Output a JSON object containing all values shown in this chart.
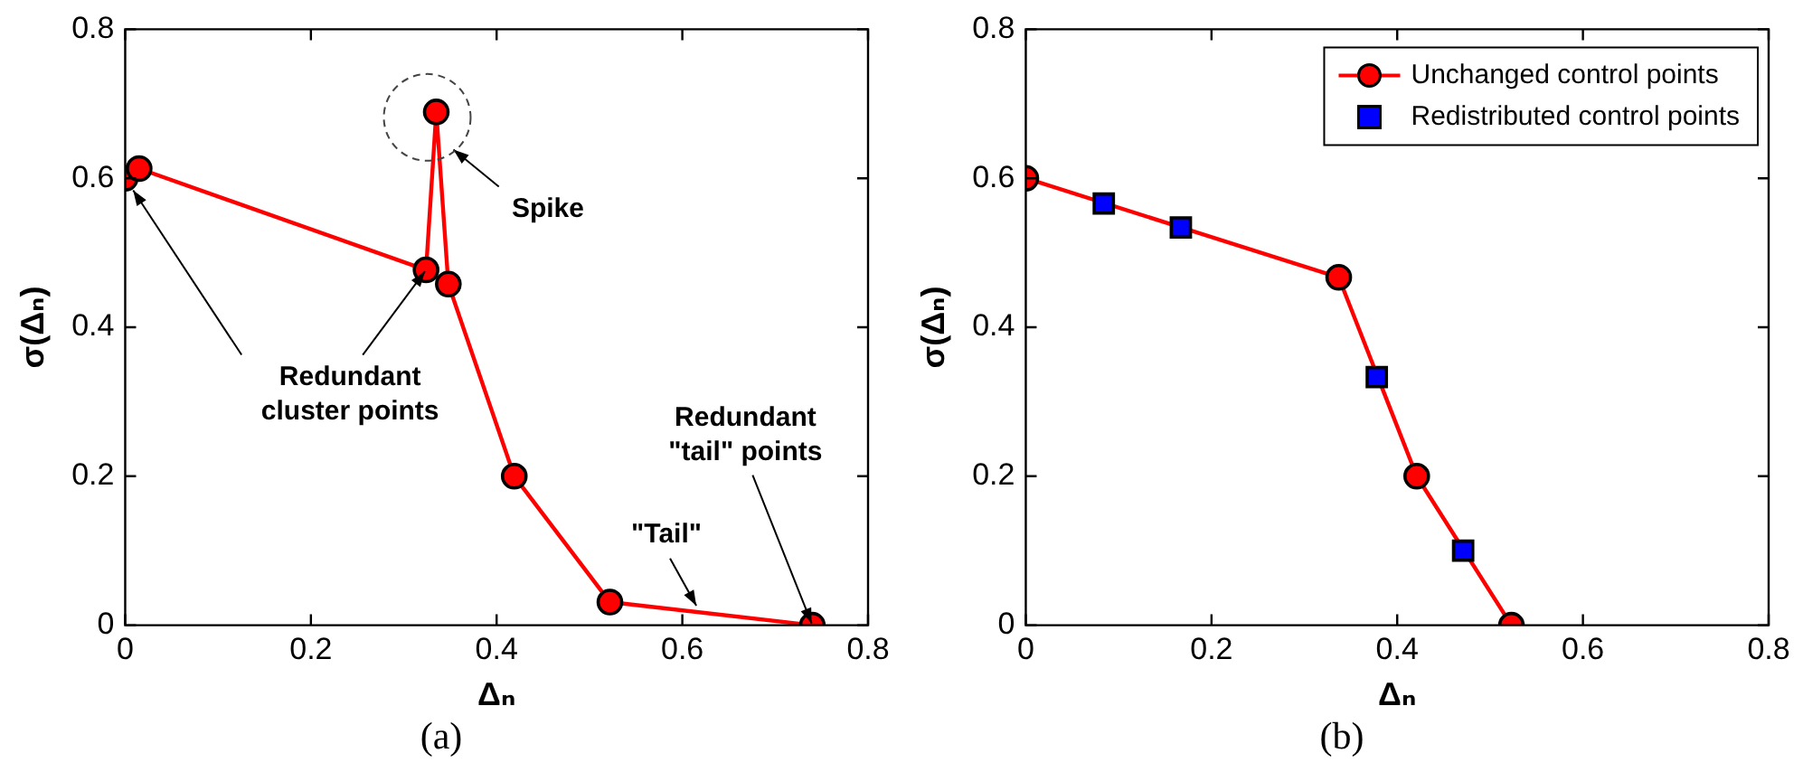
{
  "chart_data": [
    {
      "type": "line",
      "title": "(a)",
      "xlabel": "Δₙ",
      "ylabel": "σ(Δₙ)",
      "series": [
        {
          "type": "line",
          "color": "#ff0000",
          "x": [
            0,
            0.015,
            0.324,
            0.335,
            0.348,
            0.419,
            0.522,
            0.74
          ],
          "values": [
            0.6,
            0.613,
            0.477,
            0.689,
            0.458,
            0.2,
            0.031,
            0
          ]
        }
      ],
      "marker": "circle",
      "xlim": [
        0,
        0.8
      ],
      "xticks": [
        0,
        0.2,
        0.4,
        0.6,
        0.8
      ],
      "ylim": [
        0,
        0.8
      ],
      "yticks": [
        0,
        0.2,
        0.4,
        0.6,
        0.8
      ],
      "grid": false,
      "legend": false,
      "annotations": [
        "Spike",
        {
          "text": "Redundant cluster points",
          "x": 0.324,
          "y": 0.477
        },
        {
          "text": "\"Tail\"",
          "x": 0.616,
          "y": 0.024
        },
        {
          "text": "Redundant \"tail\" points",
          "x": 0.74,
          "y": 0
        }
      ]
    },
    {
      "type": "line",
      "title": "(b)",
      "xlabel": "Δₙ",
      "ylabel": "σ(Δₙ)",
      "series": [
        {
          "name": "Unchanged control points",
          "type": "line",
          "marker": "circle",
          "color": "#ff0000",
          "x": [
            0,
            0.337,
            0.421,
            0.523
          ],
          "values": [
            0.6,
            0.467,
            0.2,
            0
          ]
        },
        {
          "name": "Redistributed control points",
          "type": "scatter",
          "marker": "square",
          "color": "#0000ff",
          "x": [
            0.084,
            0.167,
            0.378,
            0.471
          ],
          "values": [
            0.566,
            0.534,
            0.333,
            0.1
          ]
        }
      ],
      "xlim": [
        0,
        0.8
      ],
      "xticks": [
        0,
        0.2,
        0.4,
        0.6,
        0.8
      ],
      "ylim": [
        0,
        0.8
      ],
      "yticks": [
        0,
        0.2,
        0.4,
        0.6,
        0.8
      ],
      "grid": false,
      "legend": "top right"
    }
  ]
}
